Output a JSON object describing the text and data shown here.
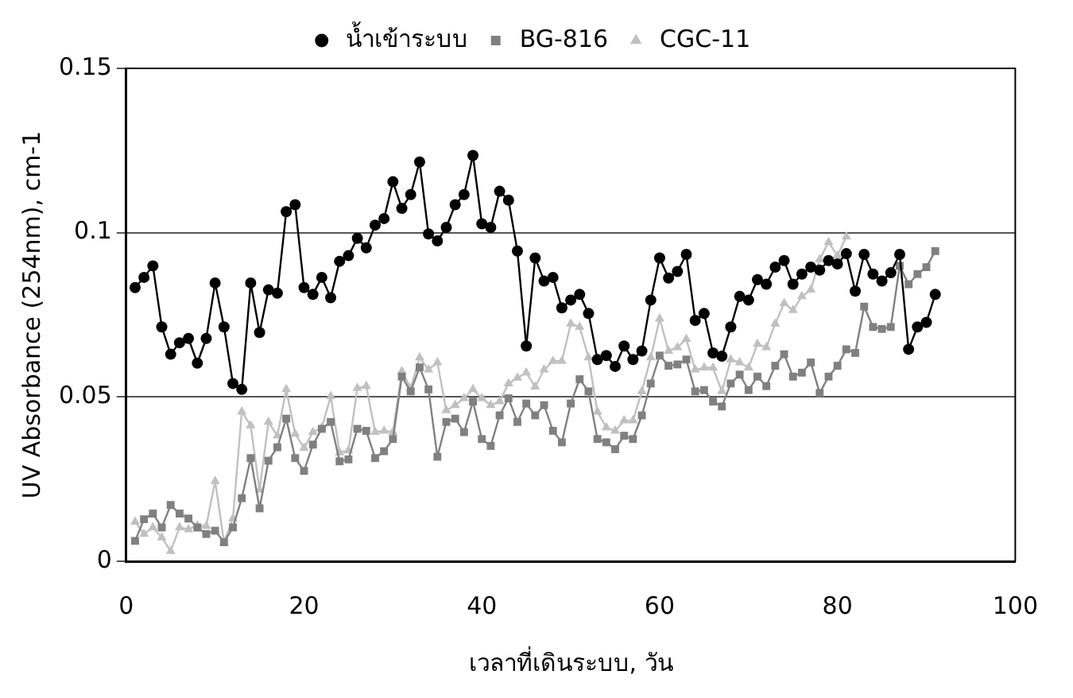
{
  "chart_data": {
    "type": "line",
    "xlabel": "เวลาที่เดินระบบ, วัน",
    "ylabel": "UV Absorbance (254nm), cm-1",
    "x": [
      1,
      2,
      3,
      4,
      5,
      6,
      7,
      8,
      9,
      10,
      11,
      12,
      13,
      14,
      15,
      16,
      17,
      18,
      19,
      20,
      21,
      22,
      23,
      24,
      25,
      26,
      27,
      28,
      29,
      30,
      31,
      32,
      33,
      34,
      35,
      36,
      37,
      38,
      39,
      40,
      41,
      42,
      43,
      44,
      45,
      46,
      47,
      48,
      49,
      50,
      51,
      52,
      53,
      54,
      55,
      56,
      57,
      58,
      59,
      60,
      61,
      62,
      63,
      64,
      65,
      66,
      67,
      68,
      69,
      70,
      71,
      72,
      73,
      74,
      75,
      76,
      77,
      78,
      79,
      80,
      81,
      82,
      83,
      84,
      85,
      86,
      87,
      88,
      89,
      90,
      91
    ],
    "series": [
      {
        "name": "น้ำเข้าระบบ",
        "color": "#000000",
        "marker": "circle",
        "values": [
          0.0833,
          0.0864,
          0.0899,
          0.0713,
          0.063,
          0.0665,
          0.0678,
          0.0603,
          0.0678,
          0.0847,
          0.0713,
          0.0541,
          0.0523,
          0.0847,
          0.0696,
          0.0826,
          0.0816,
          0.1064,
          0.1085,
          0.0833,
          0.0812,
          0.0864,
          0.0802,
          0.0913,
          0.093,
          0.0983,
          0.0954,
          0.1023,
          0.1043,
          0.1155,
          0.1074,
          0.1116,
          0.1215,
          0.0996,
          0.0975,
          0.1016,
          0.1085,
          0.1116,
          0.1235,
          0.1027,
          0.1016,
          0.1126,
          0.1099,
          0.0944,
          0.0655,
          0.0923,
          0.0853,
          0.0864,
          0.0771,
          0.0795,
          0.0812,
          0.0754,
          0.0614,
          0.0626,
          0.0593,
          0.0655,
          0.0614,
          0.064,
          0.0795,
          0.0923,
          0.0862,
          0.0882,
          0.0934,
          0.0733,
          0.0754,
          0.0634,
          0.0624,
          0.0713,
          0.0806,
          0.0795,
          0.0857,
          0.0843,
          0.0895,
          0.0915,
          0.0843,
          0.0874,
          0.0895,
          0.0886,
          0.0915,
          0.0905,
          0.0936,
          0.0822,
          0.0934,
          0.0874,
          0.0853,
          0.0878,
          0.0934,
          0.0645,
          0.0713,
          0.0727,
          0.0812
        ]
      },
      {
        "name": "BG-816",
        "color": "#808080",
        "marker": "square",
        "values": [
          0.0062,
          0.0128,
          0.0145,
          0.0103,
          0.0171,
          0.0145,
          0.013,
          0.0103,
          0.0083,
          0.0093,
          0.0058,
          0.0103,
          0.0192,
          0.0314,
          0.0161,
          0.0306,
          0.0347,
          0.0434,
          0.0314,
          0.0275,
          0.0355,
          0.0403,
          0.0424,
          0.0304,
          0.031,
          0.0403,
          0.0397,
          0.0314,
          0.0335,
          0.0372,
          0.0562,
          0.0517,
          0.059,
          0.0523,
          0.0318,
          0.0424,
          0.0434,
          0.0393,
          0.0486,
          0.0372,
          0.0351,
          0.0444,
          0.0496,
          0.0424,
          0.048,
          0.0444,
          0.0475,
          0.0397,
          0.0362,
          0.048,
          0.0554,
          0.0517,
          0.0372,
          0.0362,
          0.0341,
          0.0382,
          0.0372,
          0.0444,
          0.0541,
          0.0626,
          0.0595,
          0.0599,
          0.0614,
          0.0517,
          0.0521,
          0.0486,
          0.0471,
          0.0541,
          0.0568,
          0.0521,
          0.0562,
          0.0533,
          0.0595,
          0.063,
          0.0562,
          0.0574,
          0.0605,
          0.0512,
          0.0562,
          0.0595,
          0.0645,
          0.0634,
          0.0775,
          0.0713,
          0.0707,
          0.0713,
          0.0899,
          0.0843,
          0.0874,
          0.0895,
          0.0944
        ]
      },
      {
        "name": "CGC-11",
        "color": "#c0c0c0",
        "marker": "triangle",
        "values": [
          0.012,
          0.0083,
          0.0103,
          0.0072,
          0.0031,
          0.0103,
          0.0097,
          0.0109,
          0.0107,
          0.0244,
          0.0058,
          0.013,
          0.0455,
          0.0413,
          0.0217,
          0.0424,
          0.0382,
          0.0523,
          0.0388,
          0.0345,
          0.0393,
          0.0407,
          0.0502,
          0.0331,
          0.0337,
          0.0527,
          0.0533,
          0.0393,
          0.0397,
          0.0393,
          0.0578,
          0.0527,
          0.062,
          0.0583,
          0.0605,
          0.0459,
          0.0475,
          0.0496,
          0.0523,
          0.0496,
          0.0475,
          0.0486,
          0.0541,
          0.0558,
          0.0574,
          0.0531,
          0.0583,
          0.0609,
          0.0609,
          0.0723,
          0.0713,
          0.062,
          0.0455,
          0.0407,
          0.0397,
          0.0428,
          0.0428,
          0.0517,
          0.062,
          0.0738,
          0.064,
          0.0651,
          0.0676,
          0.0583,
          0.0589,
          0.0589,
          0.0517,
          0.0614,
          0.0605,
          0.0589,
          0.0661,
          0.0651,
          0.0723,
          0.0785,
          0.0764,
          0.0806,
          0.0826,
          0.0919,
          0.0971,
          0.093,
          0.0988,
          null,
          null,
          null,
          null,
          null,
          null,
          null,
          null,
          null,
          null
        ]
      }
    ],
    "xlim": [
      0,
      100
    ],
    "xticks": [
      0,
      20,
      40,
      60,
      80,
      100
    ],
    "ylim": [
      0,
      0.15
    ],
    "yticks": [
      0,
      0.05,
      0.1,
      0.15
    ],
    "grid": "y",
    "legend": "top",
    "line_style": "solid"
  }
}
